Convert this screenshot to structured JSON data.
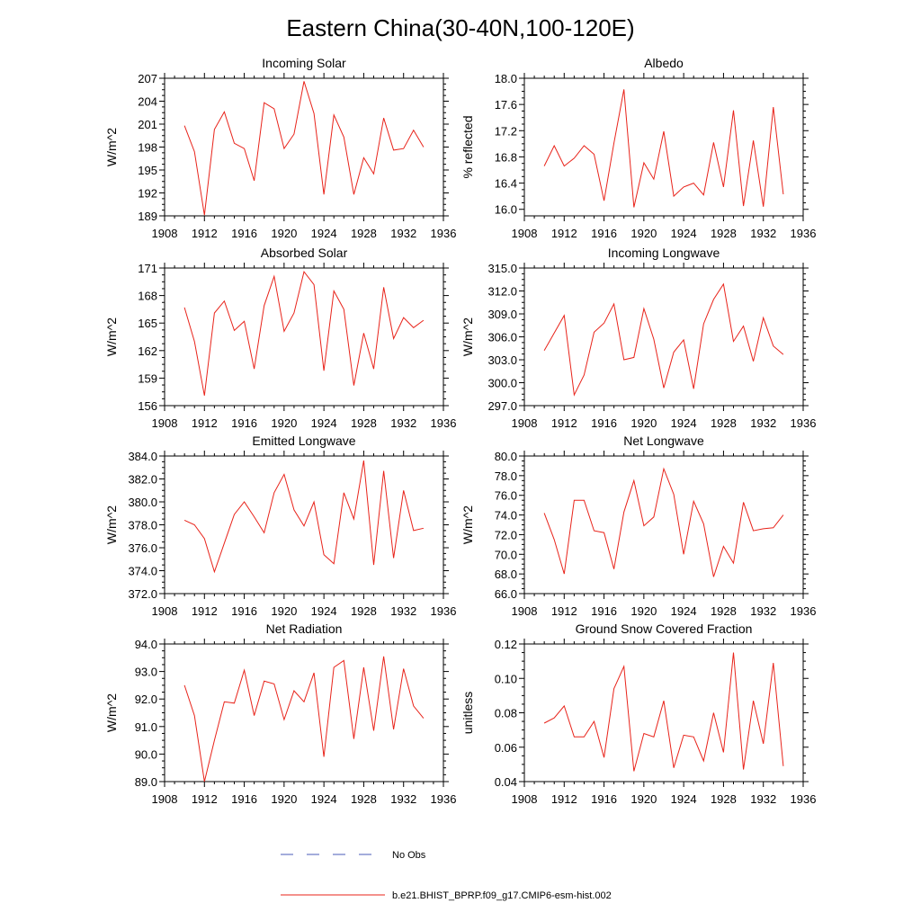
{
  "title": "Eastern China(30-40N,100-120E)",
  "colors": {
    "model": "#e8231a",
    "obs": "#4a5bb8",
    "axis": "#000000"
  },
  "legend": [
    {
      "label": "No Obs",
      "style": "dashed",
      "color": "#4a5bb8"
    },
    {
      "label": "b.e21.BHIST_BPRP.f09_g17.CMIP6-esm-hist.002",
      "style": "solid",
      "color": "#e8231a"
    }
  ],
  "chart_data": [
    {
      "type": "line",
      "title": "Incoming Solar",
      "xlabel": "",
      "ylabel": "W/m^2",
      "xlim": [
        1908,
        1936
      ],
      "xticks": [
        1908,
        1912,
        1916,
        1920,
        1924,
        1928,
        1932,
        1936
      ],
      "ylim": [
        189,
        207
      ],
      "yticks": [
        189,
        192,
        195,
        198,
        201,
        204,
        207
      ],
      "yticklabels": [
        "189",
        "192",
        "195",
        "198",
        "201",
        "204",
        "207"
      ],
      "series": [
        {
          "name": "b.e21.BHIST_BPRP.f09_g17.CMIP6-esm-hist.002",
          "x": [
            1910,
            1911,
            1912,
            1913,
            1914,
            1915,
            1916,
            1917,
            1918,
            1919,
            1920,
            1921,
            1922,
            1923,
            1924,
            1925,
            1926,
            1927,
            1928,
            1929,
            1930,
            1931,
            1932,
            1933,
            1934
          ],
          "values": [
            200.8,
            197.4,
            189.1,
            200.3,
            202.6,
            198.5,
            197.8,
            193.6,
            203.8,
            203.0,
            197.8,
            199.7,
            206.6,
            202.4,
            191.8,
            202.2,
            199.3,
            191.8,
            196.6,
            194.5,
            201.8,
            197.6,
            197.8,
            200.2,
            198.0
          ]
        }
      ]
    },
    {
      "type": "line",
      "title": "Albedo",
      "xlabel": "",
      "ylabel": "% reflected",
      "xlim": [
        1908,
        1936
      ],
      "xticks": [
        1908,
        1912,
        1916,
        1920,
        1924,
        1928,
        1932,
        1936
      ],
      "ylim": [
        15.9,
        18.0
      ],
      "yticks": [
        16.0,
        16.4,
        16.8,
        17.2,
        17.6,
        18.0
      ],
      "yticklabels": [
        "16.0",
        "16.4",
        "16.8",
        "17.2",
        "17.6",
        "18.0"
      ],
      "series": [
        {
          "name": "b.e21.BHIST_BPRP.f09_g17.CMIP6-esm-hist.002",
          "x": [
            1910,
            1911,
            1912,
            1913,
            1914,
            1915,
            1916,
            1917,
            1918,
            1919,
            1920,
            1921,
            1922,
            1923,
            1924,
            1925,
            1926,
            1927,
            1928,
            1929,
            1930,
            1931,
            1932,
            1933,
            1934
          ],
          "values": [
            16.66,
            16.97,
            16.66,
            16.78,
            16.97,
            16.84,
            16.13,
            17.01,
            17.83,
            16.03,
            16.71,
            16.46,
            17.19,
            16.2,
            16.34,
            16.4,
            16.22,
            17.02,
            16.34,
            17.51,
            16.05,
            17.05,
            16.04,
            17.56,
            16.23
          ]
        }
      ]
    },
    {
      "type": "line",
      "title": "Absorbed Solar",
      "xlabel": "",
      "ylabel": "W/m^2",
      "xlim": [
        1908,
        1936
      ],
      "xticks": [
        1908,
        1912,
        1916,
        1920,
        1924,
        1928,
        1932,
        1936
      ],
      "ylim": [
        156,
        171
      ],
      "yticks": [
        156,
        159,
        162,
        165,
        168,
        171
      ],
      "yticklabels": [
        "156",
        "159",
        "162",
        "165",
        "168",
        "171"
      ],
      "series": [
        {
          "name": "b.e21.BHIST_BPRP.f09_g17.CMIP6-esm-hist.002",
          "x": [
            1910,
            1911,
            1912,
            1913,
            1914,
            1915,
            1916,
            1917,
            1918,
            1919,
            1920,
            1921,
            1922,
            1923,
            1924,
            1925,
            1926,
            1927,
            1928,
            1929,
            1930,
            1931,
            1932,
            1933,
            1934
          ],
          "values": [
            166.7,
            163.0,
            157.1,
            166.1,
            167.4,
            164.2,
            165.2,
            160.0,
            166.9,
            170.1,
            164.1,
            166.1,
            170.6,
            169.2,
            159.8,
            168.5,
            166.5,
            158.2,
            163.9,
            160.0,
            168.9,
            163.3,
            165.6,
            164.5,
            165.3
          ]
        }
      ]
    },
    {
      "type": "line",
      "title": "Incoming Longwave",
      "xlabel": "",
      "ylabel": "W/m^2",
      "xlim": [
        1908,
        1936
      ],
      "xticks": [
        1908,
        1912,
        1916,
        1920,
        1924,
        1928,
        1932,
        1936
      ],
      "ylim": [
        297.0,
        315.0
      ],
      "yticks": [
        297.0,
        300.0,
        303.0,
        306.0,
        309.0,
        312.0,
        315.0
      ],
      "yticklabels": [
        "297.0",
        "300.0",
        "303.0",
        "306.0",
        "309.0",
        "312.0",
        "315.0"
      ],
      "series": [
        {
          "name": "b.e21.BHIST_BPRP.f09_g17.CMIP6-esm-hist.002",
          "x": [
            1910,
            1911,
            1912,
            1913,
            1914,
            1915,
            1916,
            1917,
            1918,
            1919,
            1920,
            1921,
            1922,
            1923,
            1924,
            1925,
            1926,
            1927,
            1928,
            1929,
            1930,
            1931,
            1932,
            1933,
            1934
          ],
          "values": [
            304.2,
            306.5,
            308.8,
            298.4,
            301.0,
            306.6,
            307.8,
            310.3,
            303.0,
            303.3,
            309.7,
            305.7,
            299.3,
            304.0,
            305.6,
            299.2,
            307.7,
            310.9,
            312.9,
            305.4,
            307.4,
            302.8,
            308.5,
            304.8,
            303.7
          ]
        }
      ]
    },
    {
      "type": "line",
      "title": "Emitted Longwave",
      "xlabel": "",
      "ylabel": "W/m^2",
      "xlim": [
        1908,
        1936
      ],
      "xticks": [
        1908,
        1912,
        1916,
        1920,
        1924,
        1928,
        1932,
        1936
      ],
      "ylim": [
        372.0,
        384.0
      ],
      "yticks": [
        372.0,
        374.0,
        376.0,
        378.0,
        380.0,
        382.0,
        384.0
      ],
      "yticklabels": [
        "372.0",
        "374.0",
        "376.0",
        "378.0",
        "380.0",
        "382.0",
        "384.0"
      ],
      "series": [
        {
          "name": "b.e21.BHIST_BPRP.f09_g17.CMIP6-esm-hist.002",
          "x": [
            1910,
            1911,
            1912,
            1913,
            1914,
            1915,
            1916,
            1917,
            1918,
            1919,
            1920,
            1921,
            1922,
            1923,
            1924,
            1925,
            1926,
            1927,
            1928,
            1929,
            1930,
            1931,
            1932,
            1933,
            1934
          ],
          "values": [
            378.4,
            378.0,
            376.8,
            373.9,
            376.4,
            378.9,
            380.0,
            378.7,
            377.3,
            380.8,
            382.4,
            379.3,
            377.9,
            380.0,
            375.4,
            374.6,
            380.8,
            378.5,
            383.6,
            374.5,
            382.7,
            375.1,
            381.0,
            377.5,
            377.7
          ]
        }
      ]
    },
    {
      "type": "line",
      "title": "Net Longwave",
      "xlabel": "",
      "ylabel": "W/m^2",
      "xlim": [
        1908,
        1936
      ],
      "xticks": [
        1908,
        1912,
        1916,
        1920,
        1924,
        1928,
        1932,
        1936
      ],
      "ylim": [
        66.0,
        80.0
      ],
      "yticks": [
        66.0,
        68.0,
        70.0,
        72.0,
        74.0,
        76.0,
        78.0,
        80.0
      ],
      "yticklabels": [
        "66.0",
        "68.0",
        "70.0",
        "72.0",
        "74.0",
        "76.0",
        "78.0",
        "80.0"
      ],
      "series": [
        {
          "name": "b.e21.BHIST_BPRP.f09_g17.CMIP6-esm-hist.002",
          "x": [
            1910,
            1911,
            1912,
            1913,
            1914,
            1915,
            1916,
            1917,
            1918,
            1919,
            1920,
            1921,
            1922,
            1923,
            1924,
            1925,
            1926,
            1927,
            1928,
            1929,
            1930,
            1931,
            1932,
            1933,
            1934
          ],
          "values": [
            74.2,
            71.5,
            68.0,
            75.5,
            75.5,
            72.4,
            72.2,
            68.5,
            74.3,
            77.5,
            72.9,
            73.8,
            78.7,
            76.1,
            70.0,
            75.4,
            73.1,
            67.7,
            70.8,
            69.1,
            75.3,
            72.4,
            72.6,
            72.7,
            74.0
          ]
        }
      ]
    },
    {
      "type": "line",
      "title": "Net Radiation",
      "xlabel": "",
      "ylabel": "W/m^2",
      "xlim": [
        1908,
        1936
      ],
      "xticks": [
        1908,
        1912,
        1916,
        1920,
        1924,
        1928,
        1932,
        1936
      ],
      "ylim": [
        89.0,
        94.0
      ],
      "yticks": [
        89.0,
        90.0,
        91.0,
        92.0,
        93.0,
        94.0
      ],
      "yticklabels": [
        "89.0",
        "90.0",
        "91.0",
        "92.0",
        "93.0",
        "94.0"
      ],
      "series": [
        {
          "name": "b.e21.BHIST_BPRP.f09_g17.CMIP6-esm-hist.002",
          "x": [
            1910,
            1911,
            1912,
            1913,
            1914,
            1915,
            1916,
            1917,
            1918,
            1919,
            1920,
            1921,
            1922,
            1923,
            1924,
            1925,
            1926,
            1927,
            1928,
            1929,
            1930,
            1931,
            1932,
            1933,
            1934
          ],
          "values": [
            92.5,
            91.4,
            89.0,
            90.5,
            91.9,
            91.85,
            93.05,
            91.4,
            92.65,
            92.55,
            91.25,
            92.3,
            91.9,
            92.95,
            89.9,
            93.15,
            93.4,
            90.55,
            93.15,
            90.85,
            93.55,
            90.9,
            93.1,
            91.75,
            91.3
          ]
        }
      ]
    },
    {
      "type": "line",
      "title": "Ground Snow Covered Fraction",
      "xlabel": "",
      "ylabel": "unitless",
      "xlim": [
        1908,
        1936
      ],
      "xticks": [
        1908,
        1912,
        1916,
        1920,
        1924,
        1928,
        1932,
        1936
      ],
      "ylim": [
        0.04,
        0.12
      ],
      "yticks": [
        0.04,
        0.06,
        0.08,
        0.1,
        0.12
      ],
      "yticklabels": [
        "0.04",
        "0.06",
        "0.08",
        "0.10",
        "0.12"
      ],
      "series": [
        {
          "name": "b.e21.BHIST_BPRP.f09_g17.CMIP6-esm-hist.002",
          "x": [
            1910,
            1911,
            1912,
            1913,
            1914,
            1915,
            1916,
            1917,
            1918,
            1919,
            1920,
            1921,
            1922,
            1923,
            1924,
            1925,
            1926,
            1927,
            1928,
            1929,
            1930,
            1931,
            1932,
            1933,
            1934
          ],
          "values": [
            0.074,
            0.077,
            0.084,
            0.066,
            0.066,
            0.075,
            0.054,
            0.094,
            0.107,
            0.046,
            0.068,
            0.066,
            0.087,
            0.048,
            0.067,
            0.066,
            0.052,
            0.08,
            0.057,
            0.115,
            0.047,
            0.087,
            0.062,
            0.109,
            0.049
          ]
        }
      ]
    }
  ]
}
